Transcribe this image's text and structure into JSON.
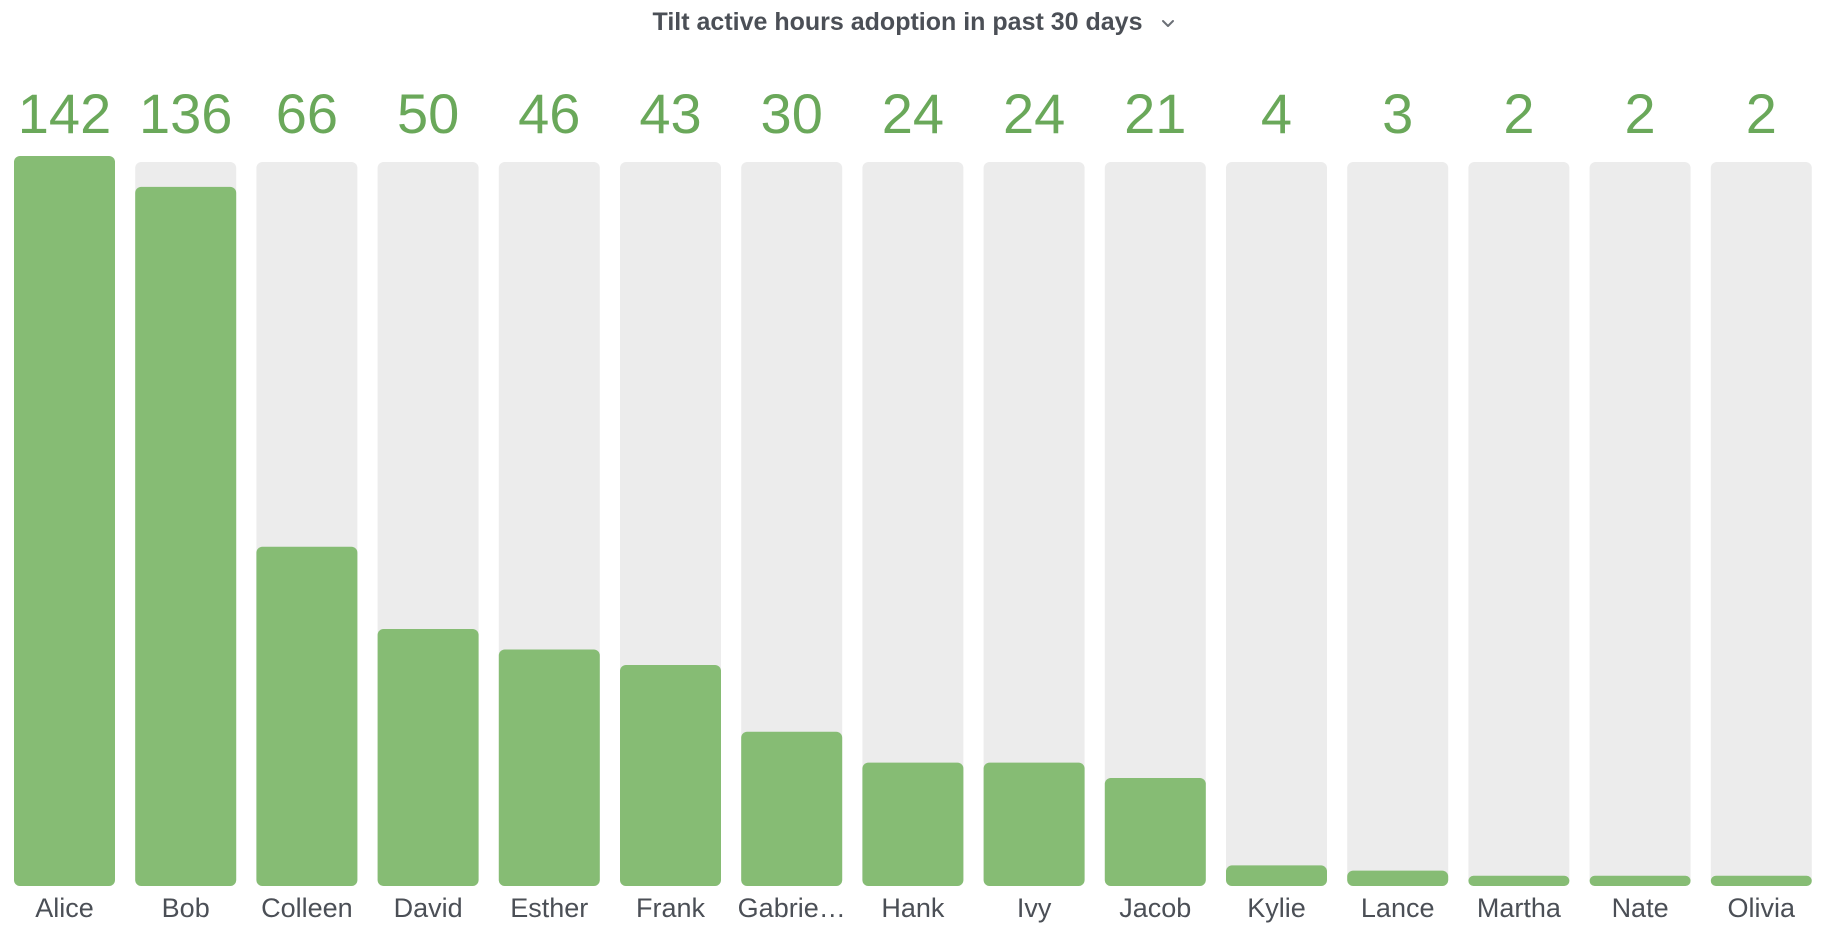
{
  "header": {
    "title": "Tilt active hours adoption in past 30 days",
    "dropdown_icon": "chevron-down-icon"
  },
  "colors": {
    "bar_fill": "#86bc74",
    "bar_track": "#ececec",
    "value_text": "#6aa85a",
    "label_text": "#4b4f56"
  },
  "chart_data": {
    "type": "bar",
    "categories": [
      "Alice",
      "Bob",
      "Colleen",
      "David",
      "Esther",
      "Frank",
      "Gabrie…",
      "Hank",
      "Ivy",
      "Jacob",
      "Kylie",
      "Lance",
      "Martha",
      "Nate",
      "Olivia"
    ],
    "values": [
      142,
      136,
      66,
      50,
      46,
      43,
      30,
      24,
      24,
      21,
      4,
      3,
      2,
      2,
      2
    ],
    "title": "Tilt active hours adoption in past 30 days",
    "xlabel": "",
    "ylabel": "",
    "ylim": [
      0,
      142
    ],
    "grid": false,
    "legend": "none",
    "data_labels": "above"
  }
}
